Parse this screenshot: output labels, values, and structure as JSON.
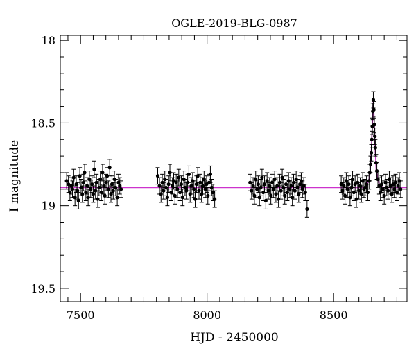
{
  "chart_data": {
    "type": "scatter",
    "title": "OGLE-2019-BLG-0987",
    "xlabel": "HJD - 2450000",
    "ylabel": "I magnitude",
    "xlim": [
      7420,
      8790
    ],
    "ylim": [
      19.58,
      17.97
    ],
    "y_inverted": true,
    "x_ticks": [
      7500,
      8000,
      8500
    ],
    "y_ticks": [
      18,
      18.5,
      19,
      19.5
    ],
    "x_tick_labels": [
      "7500",
      "8000",
      "8500"
    ],
    "y_tick_labels": [
      "18",
      "18.5",
      "19",
      "19.5"
    ],
    "grid": false,
    "colors": {
      "points": "#000000",
      "model": "#cc33cc"
    },
    "model": {
      "baseline": 18.89,
      "peak_time": 8657,
      "peak_mag": 18.37,
      "tE": 9,
      "points": [
        [
          7420,
          18.89
        ],
        [
          8620,
          18.89
        ],
        [
          8630,
          18.88
        ],
        [
          8640,
          18.84
        ],
        [
          8645,
          18.78
        ],
        [
          8650,
          18.64
        ],
        [
          8653,
          18.52
        ],
        [
          8655,
          18.43
        ],
        [
          8657,
          18.37
        ],
        [
          8659,
          18.43
        ],
        [
          8661,
          18.52
        ],
        [
          8664,
          18.64
        ],
        [
          8668,
          18.78
        ],
        [
          8674,
          18.84
        ],
        [
          8684,
          18.88
        ],
        [
          8700,
          18.89
        ],
        [
          8790,
          18.89
        ]
      ]
    },
    "series": [
      {
        "points": [
          [
            7445,
            18.85,
            0.05
          ],
          [
            7452,
            18.87,
            0.05
          ],
          [
            7458,
            18.92,
            0.05
          ],
          [
            7463,
            18.88,
            0.05
          ],
          [
            7468,
            18.9,
            0.05
          ],
          [
            7473,
            18.83,
            0.05
          ],
          [
            7478,
            18.95,
            0.05
          ],
          [
            7483,
            18.87,
            0.05
          ],
          [
            7488,
            18.91,
            0.05
          ],
          [
            7492,
            18.97,
            0.05
          ],
          [
            7497,
            18.82,
            0.05
          ],
          [
            7502,
            18.89,
            0.05
          ],
          [
            7507,
            18.93,
            0.05
          ],
          [
            7511,
            18.86,
            0.05
          ],
          [
            7516,
            18.8,
            0.05
          ],
          [
            7521,
            18.92,
            0.05
          ],
          [
            7526,
            18.88,
            0.05
          ],
          [
            7530,
            18.95,
            0.05
          ],
          [
            7535,
            18.84,
            0.05
          ],
          [
            7540,
            18.9,
            0.05
          ],
          [
            7545,
            18.87,
            0.05
          ],
          [
            7550,
            18.93,
            0.05
          ],
          [
            7554,
            18.78,
            0.05
          ],
          [
            7559,
            18.91,
            0.05
          ],
          [
            7563,
            18.86,
            0.05
          ],
          [
            7568,
            18.96,
            0.05
          ],
          [
            7573,
            18.89,
            0.05
          ],
          [
            7578,
            18.84,
            0.05
          ],
          [
            7582,
            18.92,
            0.05
          ],
          [
            7587,
            18.8,
            0.05
          ],
          [
            7592,
            18.88,
            0.05
          ],
          [
            7596,
            18.94,
            0.05
          ],
          [
            7601,
            18.86,
            0.05
          ],
          [
            7605,
            18.82,
            0.05
          ],
          [
            7610,
            18.9,
            0.05
          ],
          [
            7615,
            18.77,
            0.05
          ],
          [
            7620,
            18.93,
            0.05
          ],
          [
            7624,
            18.87,
            0.05
          ],
          [
            7629,
            18.91,
            0.05
          ],
          [
            7634,
            18.84,
            0.05
          ],
          [
            7639,
            18.89,
            0.05
          ],
          [
            7645,
            18.95,
            0.05
          ],
          [
            7650,
            18.86,
            0.05
          ],
          [
            7655,
            18.88,
            0.05
          ],
          [
            7660,
            18.9,
            0.05
          ],
          [
            7805,
            18.82,
            0.05
          ],
          [
            7812,
            18.88,
            0.05
          ],
          [
            7818,
            18.93,
            0.05
          ],
          [
            7823,
            18.86,
            0.05
          ],
          [
            7828,
            18.91,
            0.05
          ],
          [
            7833,
            18.84,
            0.05
          ],
          [
            7838,
            18.89,
            0.05
          ],
          [
            7843,
            18.95,
            0.05
          ],
          [
            7848,
            18.87,
            0.05
          ],
          [
            7853,
            18.8,
            0.05
          ],
          [
            7858,
            18.92,
            0.05
          ],
          [
            7863,
            18.88,
            0.05
          ],
          [
            7868,
            18.85,
            0.05
          ],
          [
            7873,
            18.94,
            0.05
          ],
          [
            7878,
            18.86,
            0.05
          ],
          [
            7883,
            18.9,
            0.05
          ],
          [
            7888,
            18.83,
            0.05
          ],
          [
            7893,
            18.92,
            0.05
          ],
          [
            7898,
            18.87,
            0.05
          ],
          [
            7903,
            18.95,
            0.05
          ],
          [
            7908,
            18.84,
            0.05
          ],
          [
            7913,
            18.89,
            0.05
          ],
          [
            7918,
            18.91,
            0.05
          ],
          [
            7923,
            18.86,
            0.05
          ],
          [
            7928,
            18.81,
            0.05
          ],
          [
            7933,
            18.93,
            0.05
          ],
          [
            7938,
            18.88,
            0.05
          ],
          [
            7943,
            18.85,
            0.05
          ],
          [
            7948,
            18.9,
            0.05
          ],
          [
            7953,
            18.96,
            0.05
          ],
          [
            7958,
            18.87,
            0.05
          ],
          [
            7963,
            18.82,
            0.05
          ],
          [
            7968,
            18.91,
            0.05
          ],
          [
            7973,
            18.86,
            0.05
          ],
          [
            7978,
            18.93,
            0.05
          ],
          [
            7983,
            18.88,
            0.05
          ],
          [
            7988,
            18.84,
            0.05
          ],
          [
            7993,
            18.9,
            0.05
          ],
          [
            7998,
            18.87,
            0.05
          ],
          [
            8003,
            18.94,
            0.05
          ],
          [
            8008,
            18.86,
            0.05
          ],
          [
            8013,
            18.81,
            0.05
          ],
          [
            8018,
            18.89,
            0.05
          ],
          [
            8023,
            18.92,
            0.05
          ],
          [
            8030,
            18.96,
            0.05
          ],
          [
            8170,
            18.86,
            0.05
          ],
          [
            8176,
            18.91,
            0.05
          ],
          [
            8182,
            18.88,
            0.05
          ],
          [
            8187,
            18.94,
            0.05
          ],
          [
            8192,
            18.84,
            0.05
          ],
          [
            8197,
            18.9,
            0.05
          ],
          [
            8202,
            18.87,
            0.05
          ],
          [
            8207,
            18.95,
            0.05
          ],
          [
            8212,
            18.89,
            0.05
          ],
          [
            8217,
            18.83,
            0.05
          ],
          [
            8222,
            18.92,
            0.05
          ],
          [
            8227,
            18.87,
            0.05
          ],
          [
            8232,
            18.97,
            0.05
          ],
          [
            8237,
            18.85,
            0.05
          ],
          [
            8242,
            18.91,
            0.05
          ],
          [
            8247,
            18.88,
            0.05
          ],
          [
            8252,
            18.94,
            0.05
          ],
          [
            8257,
            18.86,
            0.05
          ],
          [
            8262,
            18.9,
            0.05
          ],
          [
            8267,
            18.84,
            0.05
          ],
          [
            8272,
            18.93,
            0.05
          ],
          [
            8277,
            18.88,
            0.05
          ],
          [
            8282,
            18.96,
            0.05
          ],
          [
            8287,
            18.86,
            0.05
          ],
          [
            8292,
            18.91,
            0.05
          ],
          [
            8297,
            18.83,
            0.05
          ],
          [
            8302,
            18.89,
            0.05
          ],
          [
            8307,
            18.94,
            0.05
          ],
          [
            8312,
            18.87,
            0.05
          ],
          [
            8317,
            18.92,
            0.05
          ],
          [
            8322,
            18.85,
            0.05
          ],
          [
            8327,
            18.9,
            0.05
          ],
          [
            8332,
            18.88,
            0.05
          ],
          [
            8337,
            18.95,
            0.05
          ],
          [
            8342,
            18.86,
            0.05
          ],
          [
            8347,
            18.91,
            0.05
          ],
          [
            8352,
            18.84,
            0.05
          ],
          [
            8357,
            18.89,
            0.05
          ],
          [
            8362,
            18.93,
            0.05
          ],
          [
            8367,
            18.87,
            0.05
          ],
          [
            8372,
            18.85,
            0.05
          ],
          [
            8377,
            18.9,
            0.05
          ],
          [
            8382,
            18.88,
            0.05
          ],
          [
            8388,
            18.92,
            0.05
          ],
          [
            8395,
            19.02,
            0.05
          ],
          [
            8530,
            18.87,
            0.05
          ],
          [
            8535,
            18.91,
            0.05
          ],
          [
            8540,
            18.88,
            0.05
          ],
          [
            8545,
            18.94,
            0.05
          ],
          [
            8550,
            18.85,
            0.05
          ],
          [
            8555,
            18.9,
            0.05
          ],
          [
            8560,
            18.87,
            0.05
          ],
          [
            8565,
            18.95,
            0.05
          ],
          [
            8570,
            18.89,
            0.05
          ],
          [
            8575,
            18.84,
            0.05
          ],
          [
            8580,
            18.92,
            0.05
          ],
          [
            8585,
            18.87,
            0.05
          ],
          [
            8590,
            18.96,
            0.05
          ],
          [
            8595,
            18.86,
            0.05
          ],
          [
            8600,
            18.91,
            0.05
          ],
          [
            8605,
            18.88,
            0.05
          ],
          [
            8610,
            18.93,
            0.05
          ],
          [
            8615,
            18.85,
            0.05
          ],
          [
            8620,
            18.9,
            0.05
          ],
          [
            8625,
            18.89,
            0.05
          ],
          [
            8630,
            18.87,
            0.05
          ],
          [
            8635,
            18.92,
            0.05
          ],
          [
            8640,
            18.85,
            0.05
          ],
          [
            8643,
            18.8,
            0.05
          ],
          [
            8646,
            18.75,
            0.05
          ],
          [
            8649,
            18.68,
            0.05
          ],
          [
            8651,
            18.6,
            0.05
          ],
          [
            8653,
            18.52,
            0.05
          ],
          [
            8655,
            18.43,
            0.05
          ],
          [
            8657,
            18.36,
            0.05
          ],
          [
            8659,
            18.42,
            0.05
          ],
          [
            8661,
            18.51,
            0.05
          ],
          [
            8663,
            18.58,
            0.05
          ],
          [
            8665,
            18.65,
            0.05
          ],
          [
            8668,
            18.74,
            0.05
          ],
          [
            8671,
            18.79,
            0.05
          ],
          [
            8675,
            18.84,
            0.05
          ],
          [
            8680,
            18.88,
            0.05
          ],
          [
            8685,
            18.92,
            0.05
          ],
          [
            8690,
            18.87,
            0.05
          ],
          [
            8695,
            18.9,
            0.05
          ],
          [
            8700,
            18.94,
            0.05
          ],
          [
            8705,
            18.86,
            0.05
          ],
          [
            8710,
            18.89,
            0.05
          ],
          [
            8715,
            18.91,
            0.05
          ],
          [
            8720,
            18.84,
            0.05
          ],
          [
            8725,
            18.88,
            0.05
          ],
          [
            8730,
            18.93,
            0.05
          ],
          [
            8735,
            18.87,
            0.05
          ],
          [
            8740,
            18.9,
            0.05
          ],
          [
            8745,
            18.86,
            0.05
          ],
          [
            8750,
            18.92,
            0.05
          ],
          [
            8755,
            18.88,
            0.05
          ],
          [
            8760,
            18.85,
            0.05
          ],
          [
            8765,
            18.9,
            0.05
          ]
        ]
      }
    ]
  }
}
